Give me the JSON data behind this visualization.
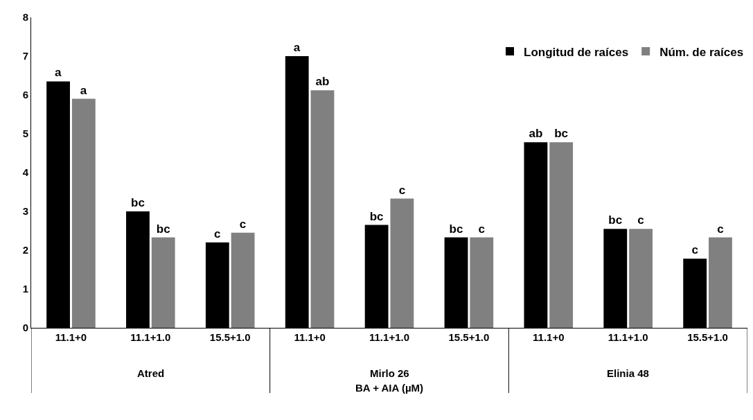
{
  "chart_data": {
    "type": "bar",
    "xlabel": "BA + AIA (µM)",
    "categories": [
      "11.1+0",
      "11.1+1.0",
      "15.5+1.0",
      "11.1+0",
      "11.1+1.0",
      "15.5+1.0",
      "11.1+0",
      "11.1+1.0",
      "15.5+1.0"
    ],
    "annotations": [
      "Atred",
      "Mirlo 26",
      "Elinia 48"
    ],
    "series": [
      {
        "name": "Longitud de raíces",
        "color": "#000000",
        "values": [
          6.35,
          3.0,
          2.2,
          7.0,
          2.65,
          2.33,
          4.78,
          2.55,
          1.78
        ],
        "value_labels": [
          "a",
          "bc",
          "c",
          "a",
          "bc",
          "bc",
          "ab",
          "bc",
          "c"
        ]
      },
      {
        "name": "Núm. de raíces",
        "color": "#808080",
        "values": [
          5.9,
          2.33,
          2.45,
          6.12,
          3.33,
          2.33,
          4.78,
          2.55,
          2.33
        ],
        "value_labels": [
          "a",
          "bc",
          "c",
          "ab",
          "c",
          "c",
          "bc",
          "c",
          "c"
        ]
      }
    ],
    "ylim": [
      0,
      8
    ],
    "yticks": [
      0,
      1,
      2,
      3,
      4,
      5,
      6,
      7,
      8
    ],
    "grid": false,
    "legend": "top right"
  }
}
